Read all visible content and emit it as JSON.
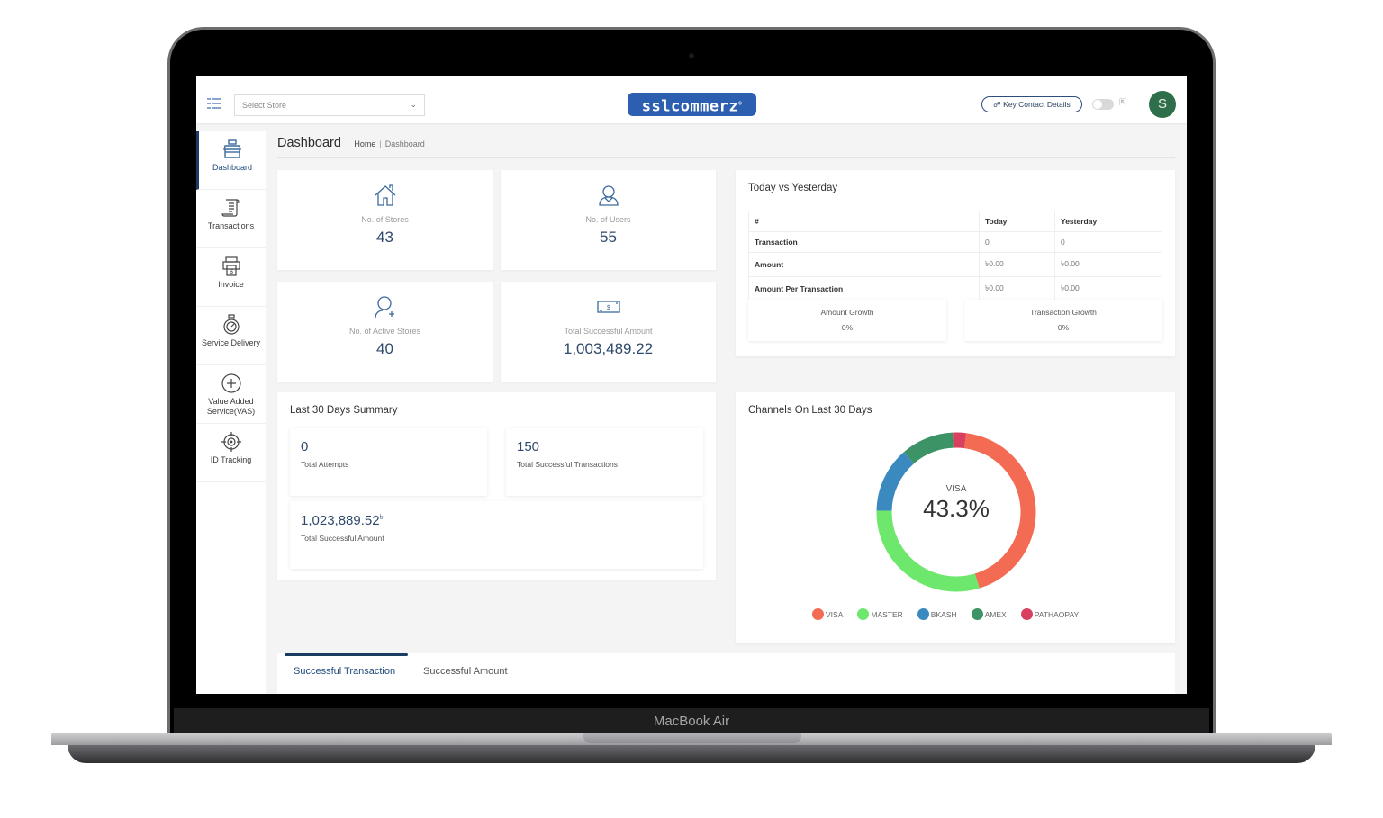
{
  "device": {
    "label": "MacBook Air"
  },
  "topbar": {
    "store_select": {
      "placeholder": "Select Store"
    },
    "logo": "sslcommerz",
    "key_contact_label": "Key Contact Details",
    "avatar_initial": "S"
  },
  "sidebar": {
    "items": [
      {
        "label": "Dashboard",
        "icon": "store-icon",
        "active": true
      },
      {
        "label": "Transactions",
        "icon": "receipt-scroll-icon"
      },
      {
        "label": "Invoice",
        "icon": "invoice-printer-icon"
      },
      {
        "label": "Service Delivery",
        "icon": "stopwatch-icon"
      },
      {
        "label_line1": "Value Added",
        "label_line2": "Service(VAS)",
        "icon": "plus-circle-icon"
      },
      {
        "label": "ID Tracking",
        "icon": "crosshair-icon"
      }
    ]
  },
  "page": {
    "title": "Dashboard",
    "breadcrumb": {
      "home": "Home",
      "current": "Dashboard"
    }
  },
  "stats": [
    {
      "label": "No. of Stores",
      "value": "43",
      "icon": "house-icon"
    },
    {
      "label": "No. of Users",
      "value": "55",
      "icon": "user-icon"
    },
    {
      "label": "No. of Active Stores",
      "value": "40",
      "icon": "user-plus-icon"
    },
    {
      "label": "Total Successful Amount",
      "value": "1,003,489.22",
      "icon": "banknote-icon"
    }
  ],
  "today_vs_yesterday": {
    "title": "Today vs Yesterday",
    "headers": [
      "#",
      "Today",
      "Yesterday"
    ],
    "rows": [
      {
        "label": "Transaction",
        "today": "0",
        "yesterday": "0"
      },
      {
        "label": "Amount",
        "today": "৳0.00",
        "yesterday": "৳0.00"
      },
      {
        "label": "Amount Per Transaction",
        "today": "৳0.00",
        "yesterday": "৳0.00"
      }
    ],
    "amount_growth": {
      "label": "Amount Growth",
      "value": "0%"
    },
    "transaction_growth": {
      "label": "Transaction Growth",
      "value": "0%"
    }
  },
  "last30": {
    "title": "Last 30 Days Summary",
    "total_attempts": {
      "value": "0",
      "label": "Total Attempts"
    },
    "total_successful_transactions": {
      "value": "150",
      "label": "Total Successful Transactions"
    },
    "total_successful_amount": {
      "value": "1,023,889.52",
      "currency": "৳",
      "label": "Total Successful Amount"
    }
  },
  "channels": {
    "title": "Channels On Last 30 Days",
    "center_label": "VISA",
    "center_value": "43.3%"
  },
  "chart_data": {
    "type": "pie",
    "title": "Channels On Last 30 Days",
    "categories": [
      "VISA",
      "MASTER",
      "BKASH",
      "AMEX",
      "PATHAOPAY"
    ],
    "values": [
      43.3,
      30.0,
      13.3,
      10.7,
      2.7
    ],
    "colors": [
      "#f26b52",
      "#6de86c",
      "#3a8abf",
      "#3c9466",
      "#d9405f"
    ],
    "donut": true,
    "highlighted": {
      "label": "VISA",
      "value": "43.3%"
    },
    "legend_position": "bottom"
  },
  "tabs": [
    {
      "label": "Successful Transaction",
      "active": true
    },
    {
      "label": "Successful Amount",
      "active": false
    }
  ],
  "colors": {
    "brand": "#2d5fb0",
    "primary_dark": "#1c3d63",
    "value_text": "#2f4a6c",
    "avatar": "#2f6e4b"
  }
}
